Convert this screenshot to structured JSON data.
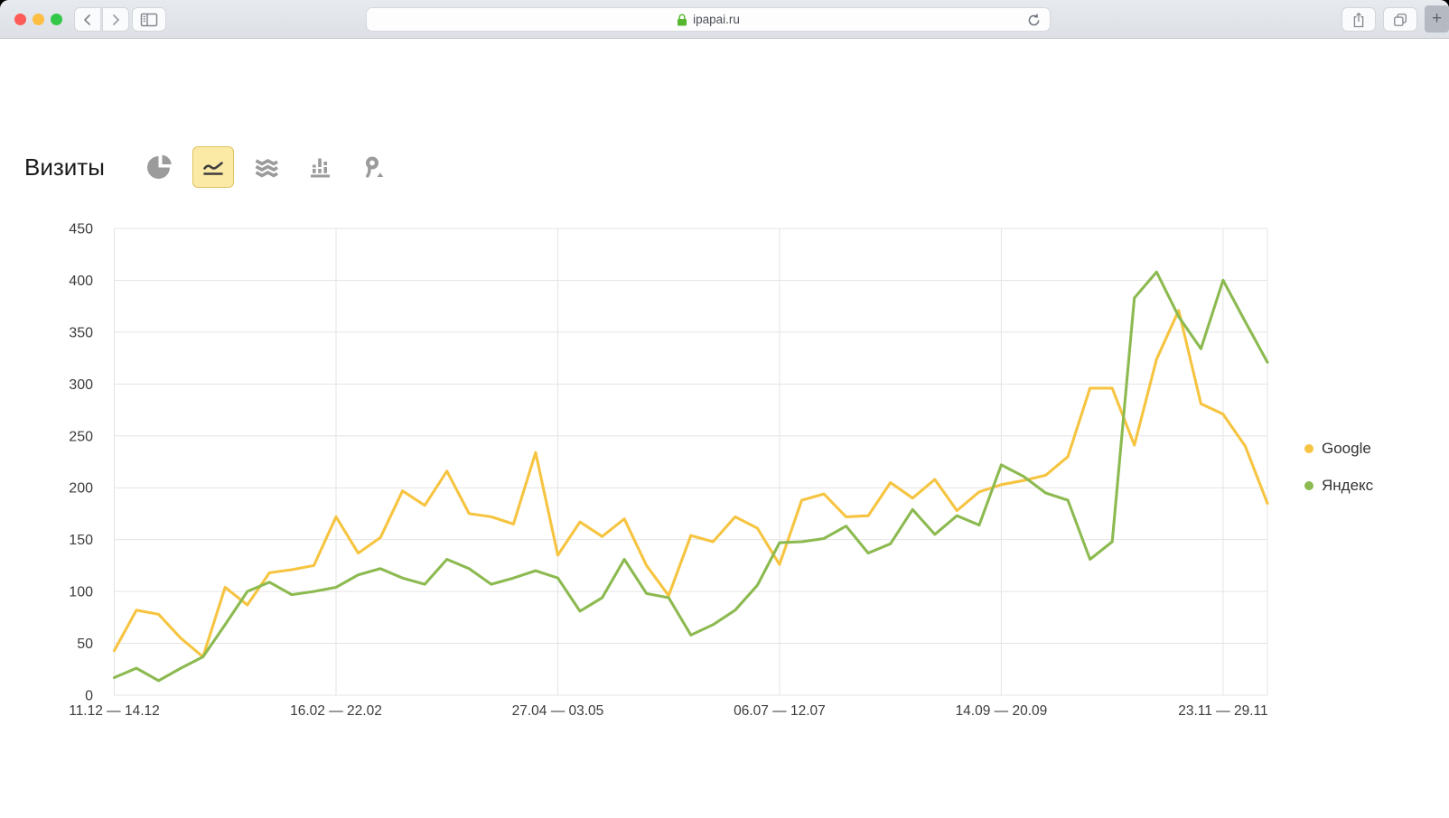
{
  "browser": {
    "url": "ipapai.ru",
    "traffic_light_colors": {
      "close": "#fc5b57",
      "minimize": "#fdbe41",
      "zoom": "#34c84a"
    },
    "lock_color": "#55b82e",
    "plus_label": "+"
  },
  "page": {
    "title": "Визиты",
    "chart_type_toolbar": {
      "selected": "line",
      "types": [
        "pie",
        "line",
        "stacked-area",
        "columns",
        "map"
      ],
      "selected_bg": "#fbe9a6",
      "selected_border": "#dfc35f"
    }
  },
  "chart_data": {
    "type": "line",
    "title": "Визиты",
    "grid": true,
    "legend_position": "right",
    "points_count": 53,
    "x_axis": {
      "tick_labels": [
        "11.12 — 14.12",
        "16.02 — 22.02",
        "27.04 — 03.05",
        "06.07 — 12.07",
        "14.09 — 20.09",
        "23.11 — 29.11"
      ],
      "tick_point_indices": [
        0,
        10,
        20,
        30,
        40,
        50
      ]
    },
    "y_axis": {
      "min": 0,
      "max": 450,
      "tick_step": 50,
      "ticks": [
        0,
        50,
        100,
        150,
        200,
        250,
        300,
        350,
        400,
        450
      ]
    },
    "series": [
      {
        "name": "Google",
        "color": "#f6c440",
        "values": [
          43,
          82,
          78,
          55,
          37,
          104,
          87,
          118,
          121,
          125,
          172,
          137,
          152,
          197,
          183,
          216,
          175,
          172,
          165,
          234,
          135,
          167,
          153,
          170,
          125,
          96,
          154,
          148,
          172,
          161,
          126,
          188,
          194,
          172,
          173,
          205,
          190,
          208,
          178,
          196,
          203,
          207,
          212,
          230,
          296,
          296,
          241,
          324,
          371,
          281,
          271,
          240,
          185
        ]
      },
      {
        "name": "Яндекс",
        "color": "#8cba50",
        "values": [
          17,
          26,
          14,
          26,
          37,
          68,
          100,
          109,
          97,
          100,
          104,
          116,
          122,
          113,
          107,
          131,
          122,
          107,
          113,
          120,
          113,
          81,
          94,
          131,
          98,
          94,
          58,
          68,
          82,
          106,
          147,
          148,
          151,
          163,
          137,
          146,
          179,
          155,
          173,
          164,
          222,
          211,
          195,
          188,
          131,
          148,
          383,
          408,
          365,
          334,
          400,
          360,
          321
        ]
      }
    ]
  }
}
